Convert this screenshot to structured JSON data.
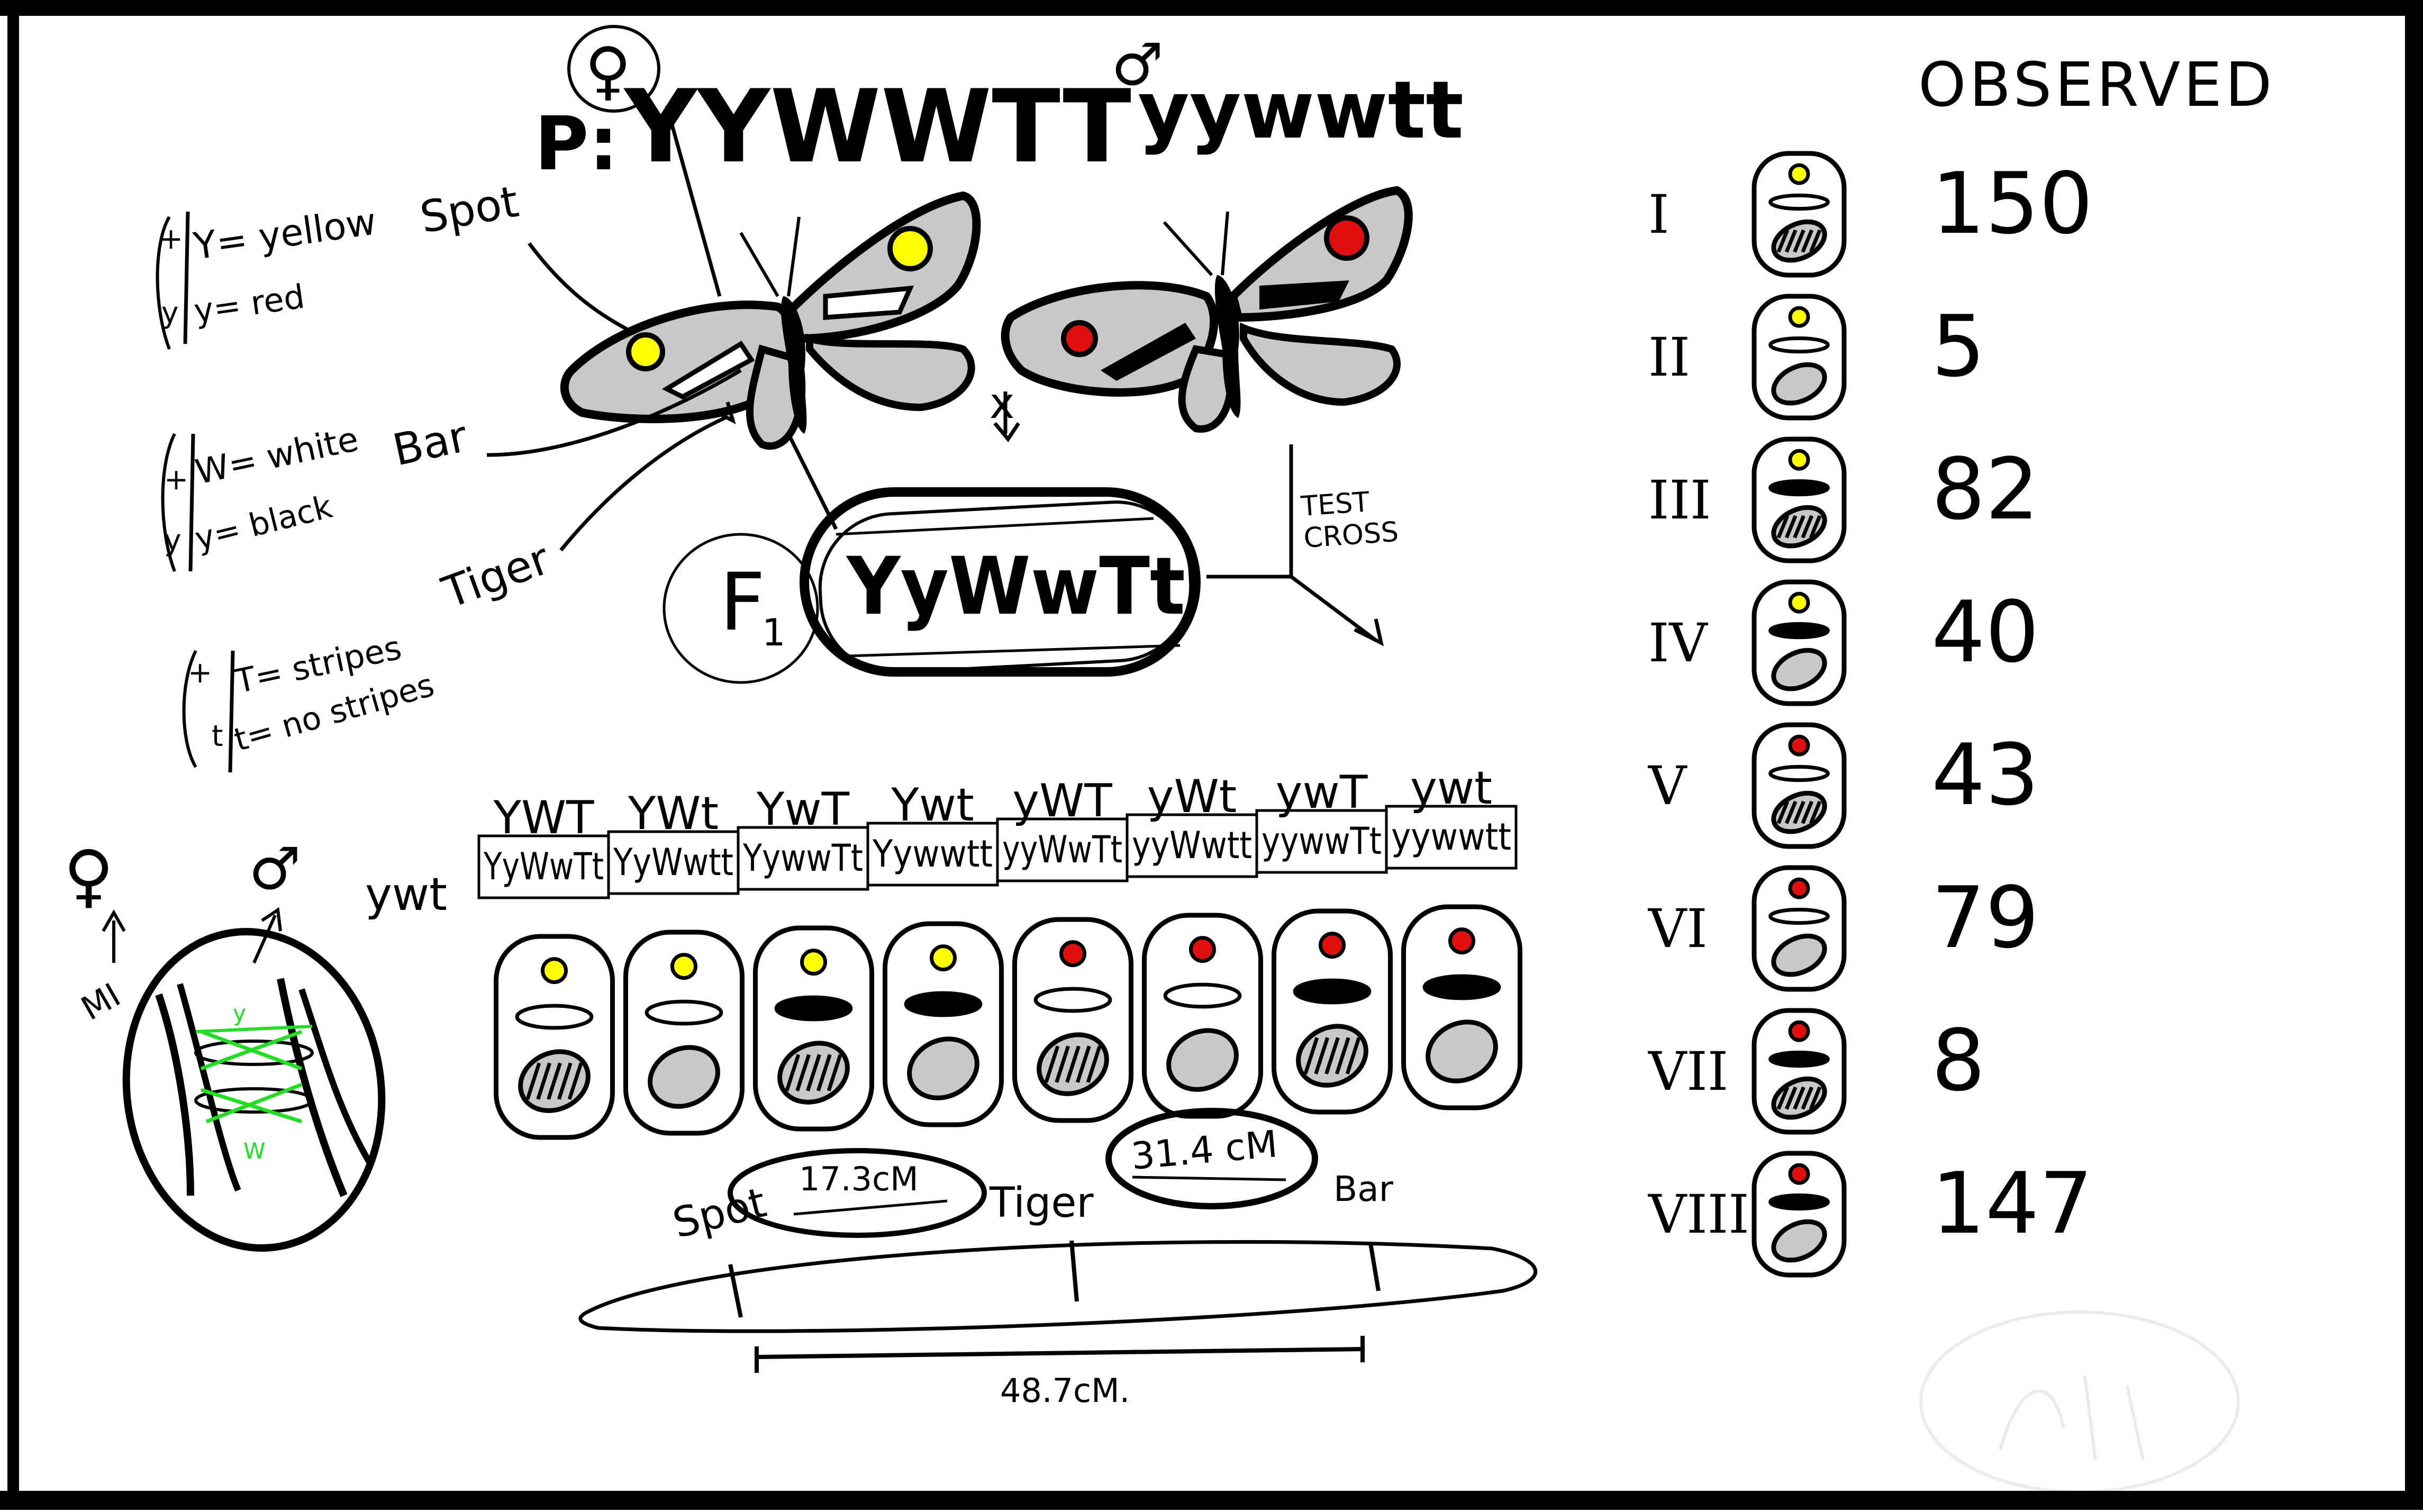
{
  "parents": {
    "label": "P:",
    "female_symbol": "♀",
    "male_symbol": "♂",
    "female_genotype": "YYWWTT",
    "male_genotype": "yywwtt",
    "cross_symbol": "x"
  },
  "key": {
    "spot": {
      "trait": "Spot",
      "dominant_mark": "+",
      "recessive_mark": "y",
      "dominant": "Y= yellow",
      "recessive": "y= red"
    },
    "bar": {
      "trait": "Bar",
      "dominant_mark": "+",
      "recessive_mark": "y",
      "dominant": "W= white",
      "recessive": "y= black"
    },
    "tiger": {
      "trait": "Tiger",
      "dominant_mark": "+",
      "recessive_mark": "t",
      "dominant": "T= stripes",
      "recessive": "t= no stripes"
    }
  },
  "f1": {
    "label": "F",
    "subscript": "1",
    "genotype": "YyWwTt"
  },
  "test_cross": {
    "line1": "TEST",
    "line2": "CROSS"
  },
  "punnett": {
    "row_gamete": "ywt",
    "columns": [
      "YWT",
      "YWt",
      "YwT",
      "Ywt",
      "yWT",
      "yWt",
      "ywT",
      "ywt"
    ],
    "cells": [
      "YyWwTt",
      "YyWwtt",
      "YywwTt",
      "Yywwtt",
      "yyWwTt",
      "yyWwtt",
      "yywwTt",
      "yywwtt"
    ]
  },
  "phenotype_icons": [
    {
      "spot": "yellow",
      "bar": "white",
      "stripes": true
    },
    {
      "spot": "yellow",
      "bar": "white",
      "stripes": false
    },
    {
      "spot": "yellow",
      "bar": "black",
      "stripes": true
    },
    {
      "spot": "yellow",
      "bar": "black",
      "stripes": false
    },
    {
      "spot": "red",
      "bar": "white",
      "stripes": true
    },
    {
      "spot": "red",
      "bar": "white",
      "stripes": false
    },
    {
      "spot": "red",
      "bar": "black",
      "stripes": true
    },
    {
      "spot": "red",
      "bar": "black",
      "stripes": false
    }
  ],
  "meiosis": {
    "female_symbol": "♀",
    "male_symbol": "♂",
    "label": "MI"
  },
  "map": {
    "genes": [
      "Spot",
      "Tiger",
      "Bar"
    ],
    "spot_tiger": "17.3cM",
    "tiger_bar": "31.4 cM",
    "total": "48.7cM."
  },
  "observed": {
    "title": "OBSERVED",
    "rows": [
      {
        "numeral": "I",
        "count": "150",
        "spot": "yellow",
        "bar": "white",
        "stripes": true
      },
      {
        "numeral": "II",
        "count": "5",
        "spot": "yellow",
        "bar": "white",
        "stripes": false
      },
      {
        "numeral": "III",
        "count": "82",
        "spot": "yellow",
        "bar": "black",
        "stripes": true
      },
      {
        "numeral": "IV",
        "count": "40",
        "spot": "yellow",
        "bar": "black",
        "stripes": false
      },
      {
        "numeral": "V",
        "count": "43",
        "spot": "red",
        "bar": "white",
        "stripes": true
      },
      {
        "numeral": "VI",
        "count": "79",
        "spot": "red",
        "bar": "white",
        "stripes": false
      },
      {
        "numeral": "VII",
        "count": "8",
        "spot": "red",
        "bar": "black",
        "stripes": true
      },
      {
        "numeral": "VIII",
        "count": "147",
        "spot": "red",
        "bar": "black",
        "stripes": false
      }
    ]
  },
  "colors": {
    "yellow": "#ffff00",
    "red": "#e01010",
    "wing_gray": "#c8c8c8",
    "crossover_green": "#22dd22",
    "ink": "#000000"
  }
}
